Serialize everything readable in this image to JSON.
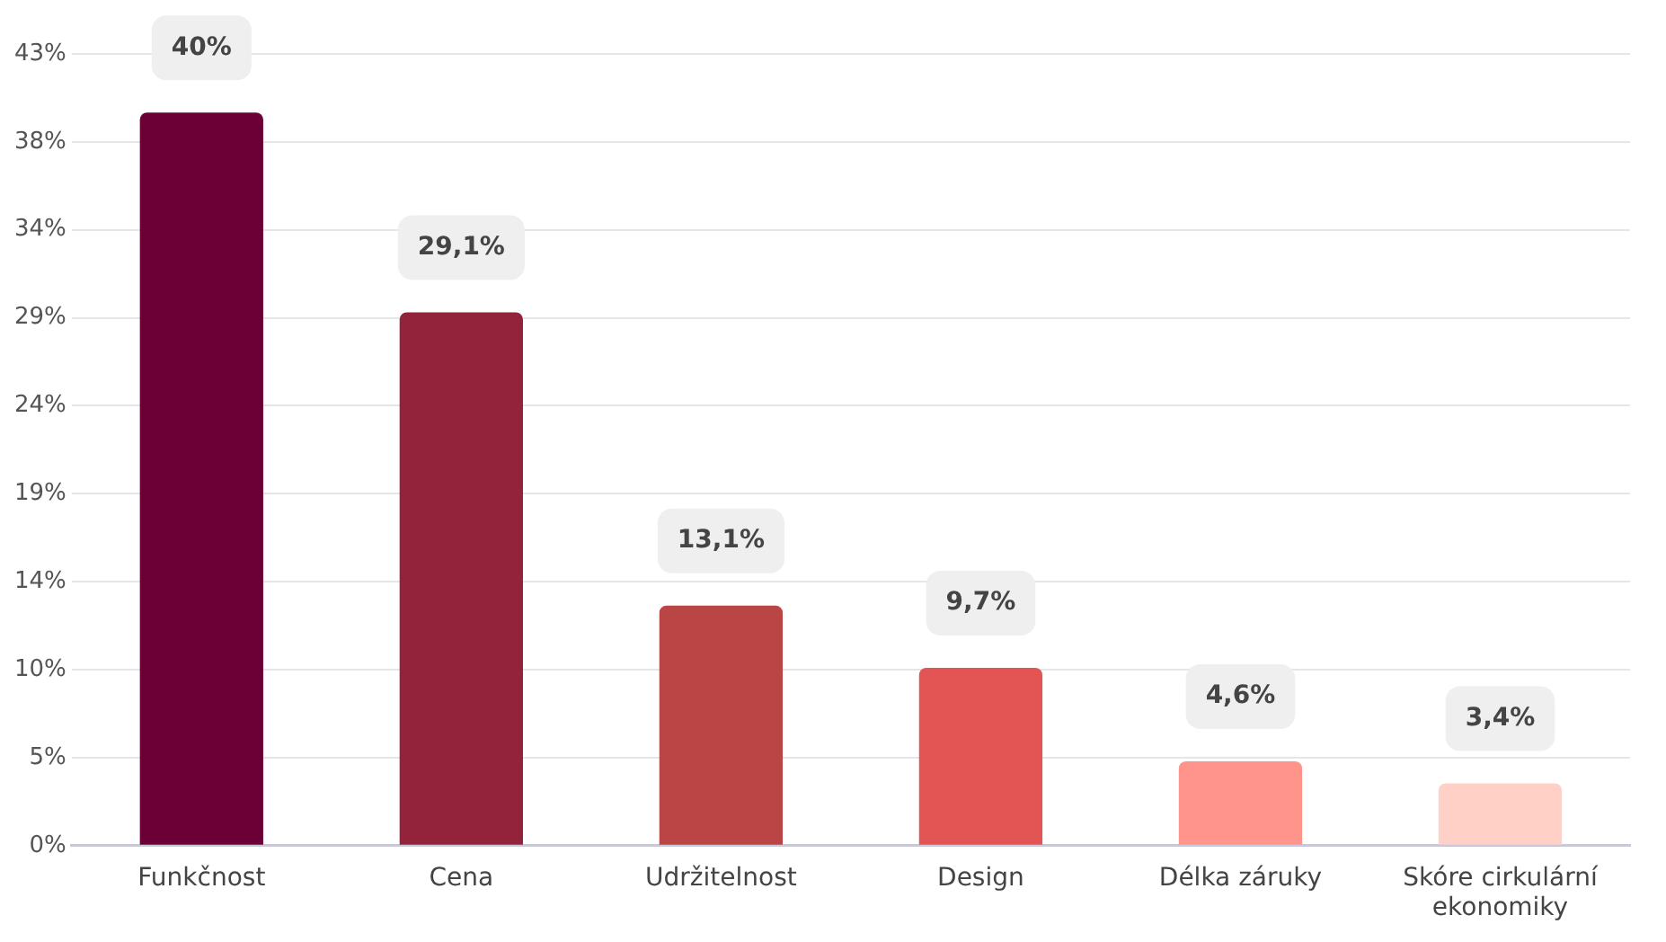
{
  "chart_data": {
    "type": "bar",
    "categories": [
      "Funkčnost",
      "Cena",
      "Udržitelnost",
      "Design",
      "Délka záruky",
      "Skóre cirkulární ekonomiky"
    ],
    "values": [
      40,
      29.1,
      13.1,
      9.7,
      4.6,
      3.4
    ],
    "colors": [
      "#6b0036",
      "#92233b",
      "#b94545",
      "#e35454",
      "#ff958a",
      "#ffd0c6"
    ],
    "value_labels": [
      "40%",
      "29,1%",
      "13,1%",
      "9,7%",
      "4,6%",
      "3,4%"
    ],
    "ylim": [
      0,
      43.2
    ],
    "yticks": [
      {
        "value": 0,
        "label": "0%"
      },
      {
        "value": 4.8,
        "label": "5%"
      },
      {
        "value": 9.6,
        "label": "10%"
      },
      {
        "value": 14.4,
        "label": "14%"
      },
      {
        "value": 19.2,
        "label": "19%"
      },
      {
        "value": 24,
        "label": "24%"
      },
      {
        "value": 28.8,
        "label": "29%"
      },
      {
        "value": 33.6,
        "label": "34%"
      },
      {
        "value": 38.4,
        "label": "38%"
      },
      {
        "value": 43.2,
        "label": "43%"
      }
    ],
    "grid": "y",
    "legend": false
  }
}
